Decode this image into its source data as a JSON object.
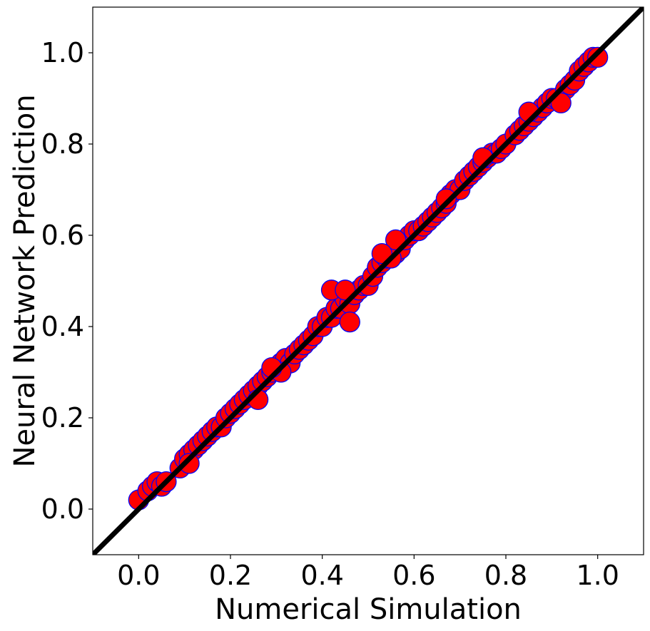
{
  "chart_data": {
    "type": "scatter",
    "title": "",
    "xlabel": "Numerical Simulation",
    "ylabel": "Neural Network Prediction",
    "xlim": [
      -0.1,
      1.1
    ],
    "ylim": [
      -0.1,
      1.1
    ],
    "xticks": [
      "0.0",
      "0.2",
      "0.4",
      "0.6",
      "0.8",
      "1.0"
    ],
    "yticks": [
      "0.0",
      "0.2",
      "0.4",
      "0.6",
      "0.8",
      "1.0"
    ],
    "grid": false,
    "legend": "none",
    "colors": {
      "marker_fill": "#ff0000",
      "marker_edge": "#0000ff",
      "reference_line": "#000000"
    },
    "reference_line": {
      "description": "y = x",
      "x": [
        -0.1,
        1.1
      ],
      "y": [
        -0.1,
        1.1
      ]
    },
    "series": [
      {
        "x": [
          0.0,
          0.02,
          0.03,
          0.04,
          0.05,
          0.06,
          0.09,
          0.1,
          0.11,
          0.12,
          0.13,
          0.14,
          0.15,
          0.16,
          0.17,
          0.18,
          0.19,
          0.2,
          0.21,
          0.22,
          0.23,
          0.24,
          0.25,
          0.26,
          0.27,
          0.28,
          0.29,
          0.3,
          0.31,
          0.32,
          0.33,
          0.34,
          0.35,
          0.36,
          0.37,
          0.38,
          0.39,
          0.4,
          0.41,
          0.42,
          0.43,
          0.44,
          0.45,
          0.46,
          0.47,
          0.48,
          0.49,
          0.5,
          0.51,
          0.52,
          0.53,
          0.54,
          0.55,
          0.56,
          0.57,
          0.58,
          0.59,
          0.6,
          0.61,
          0.62,
          0.63,
          0.64,
          0.65,
          0.66,
          0.67,
          0.68,
          0.69,
          0.7,
          0.71,
          0.72,
          0.73,
          0.74,
          0.75,
          0.76,
          0.77,
          0.78,
          0.79,
          0.8,
          0.82,
          0.83,
          0.84,
          0.85,
          0.86,
          0.87,
          0.88,
          0.89,
          0.9,
          0.91,
          0.93,
          0.94,
          0.95,
          0.96,
          0.97,
          0.98,
          0.99,
          1.0,
          0.42,
          0.45,
          0.46,
          0.55,
          0.56,
          0.26,
          0.31,
          0.53,
          0.29,
          0.11,
          0.67,
          0.85,
          0.92,
          0.75
        ],
        "y": [
          0.02,
          0.04,
          0.05,
          0.06,
          0.05,
          0.06,
          0.09,
          0.11,
          0.12,
          0.13,
          0.14,
          0.15,
          0.16,
          0.17,
          0.18,
          0.18,
          0.2,
          0.21,
          0.22,
          0.23,
          0.24,
          0.25,
          0.26,
          0.27,
          0.28,
          0.29,
          0.3,
          0.31,
          0.32,
          0.33,
          0.32,
          0.34,
          0.35,
          0.36,
          0.37,
          0.38,
          0.4,
          0.4,
          0.42,
          0.42,
          0.44,
          0.44,
          0.46,
          0.45,
          0.47,
          0.48,
          0.49,
          0.49,
          0.51,
          0.53,
          0.54,
          0.55,
          0.56,
          0.56,
          0.57,
          0.59,
          0.6,
          0.61,
          0.61,
          0.62,
          0.63,
          0.64,
          0.65,
          0.66,
          0.67,
          0.69,
          0.7,
          0.7,
          0.72,
          0.73,
          0.74,
          0.75,
          0.76,
          0.77,
          0.78,
          0.78,
          0.79,
          0.8,
          0.82,
          0.83,
          0.84,
          0.85,
          0.86,
          0.87,
          0.88,
          0.89,
          0.9,
          0.9,
          0.92,
          0.93,
          0.94,
          0.96,
          0.97,
          0.98,
          0.99,
          0.99,
          0.48,
          0.48,
          0.41,
          0.55,
          0.59,
          0.24,
          0.3,
          0.56,
          0.31,
          0.1,
          0.68,
          0.87,
          0.89,
          0.77
        ]
      }
    ]
  }
}
